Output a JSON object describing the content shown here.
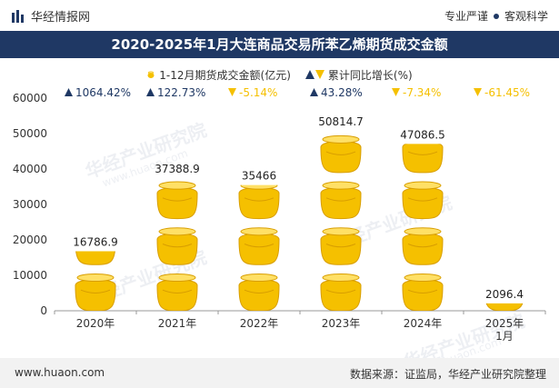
{
  "header": {
    "brand_name": "华经情报网",
    "right_tag_1": "专业严谨",
    "right_tag_2": "客观科学"
  },
  "title": "2020-2025年1月大连商品交易所苯乙烯期货成交金额",
  "legend": {
    "series1": "1-12月期货成交金额(亿元)",
    "series2": "累计同比增长(%)"
  },
  "watermark": {
    "text": "华经产业研究院",
    "url": "www.huaon.com"
  },
  "footer": {
    "left": "www.huaon.com",
    "right": "数据来源：证监局，华经产业研究院整理"
  },
  "colors": {
    "accent": "#1f3864",
    "gold": "#f5c000",
    "up": "#1f3864",
    "down": "#f5c000"
  },
  "chart_data": {
    "type": "bar",
    "categories": [
      "2020年",
      "2021年",
      "2022年",
      "2023年",
      "2024年",
      "2025年\n1月"
    ],
    "series": [
      {
        "name": "1-12月期货成交金额(亿元)",
        "values": [
          16786.9,
          37388.9,
          35466,
          50814.7,
          47086.5,
          2096.4
        ],
        "labels": [
          "16786.9",
          "37388.9",
          "35466",
          "50814.7",
          "47086.5",
          "2096.4"
        ]
      },
      {
        "name": "累计同比增长(%)",
        "values": [
          1064.42,
          122.73,
          -5.14,
          43.28,
          -7.34,
          -61.45
        ],
        "labels": [
          "1064.42%",
          "122.73%",
          "-5.14%",
          "43.28%",
          "-7.34%",
          "-61.45%"
        ]
      }
    ],
    "y_ticks": [
      "0",
      "10000",
      "20000",
      "30000",
      "40000",
      "50000",
      "60000"
    ],
    "ylim": [
      0,
      60000
    ],
    "grid": false,
    "legend_position": "top-center",
    "icon": "gold-pot-icon"
  }
}
